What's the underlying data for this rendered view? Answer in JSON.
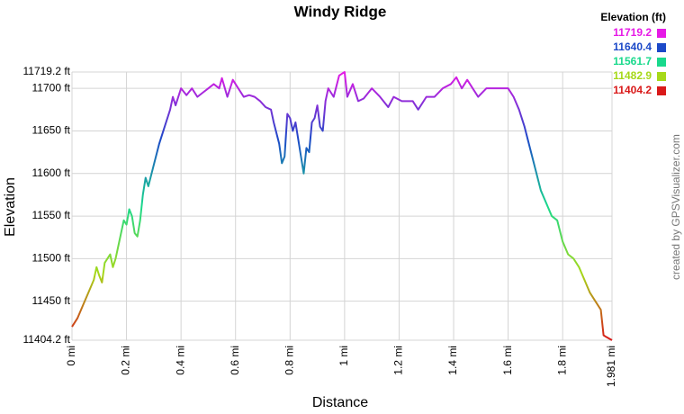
{
  "chart_data": {
    "type": "line",
    "title": "Windy Ridge",
    "x_label": "Distance",
    "y_label": "Elevation",
    "credit": "created by GPSVisualizer.com",
    "legend": {
      "title": "Elevation (ft)",
      "items": [
        {
          "value": 11719.2,
          "color": "#e619e6"
        },
        {
          "value": 11640.4,
          "color": "#1c49c8"
        },
        {
          "value": 11561.7,
          "color": "#19d98c"
        },
        {
          "value": 11482.9,
          "color": "#a6d919"
        },
        {
          "value": 11404.2,
          "color": "#d91919"
        }
      ]
    },
    "x": [
      0,
      0.02,
      0.04,
      0.06,
      0.08,
      0.09,
      0.1,
      0.11,
      0.12,
      0.14,
      0.15,
      0.16,
      0.18,
      0.19,
      0.2,
      0.21,
      0.22,
      0.23,
      0.24,
      0.25,
      0.26,
      0.27,
      0.28,
      0.3,
      0.32,
      0.34,
      0.36,
      0.37,
      0.38,
      0.4,
      0.42,
      0.44,
      0.46,
      0.48,
      0.5,
      0.52,
      0.54,
      0.55,
      0.57,
      0.59,
      0.61,
      0.63,
      0.65,
      0.67,
      0.69,
      0.71,
      0.73,
      0.74,
      0.76,
      0.77,
      0.78,
      0.79,
      0.8,
      0.81,
      0.82,
      0.84,
      0.85,
      0.86,
      0.87,
      0.88,
      0.89,
      0.9,
      0.91,
      0.92,
      0.93,
      0.94,
      0.96,
      0.98,
      1.0,
      1.01,
      1.03,
      1.05,
      1.07,
      1.1,
      1.13,
      1.16,
      1.18,
      1.21,
      1.25,
      1.27,
      1.3,
      1.33,
      1.36,
      1.39,
      1.41,
      1.43,
      1.45,
      1.47,
      1.49,
      1.52,
      1.56,
      1.6,
      1.62,
      1.64,
      1.66,
      1.68,
      1.7,
      1.72,
      1.74,
      1.76,
      1.78,
      1.8,
      1.82,
      1.84,
      1.86,
      1.88,
      1.9,
      1.92,
      1.94,
      1.95,
      1.96,
      1.981
    ],
    "values": [
      11420,
      11430,
      11445,
      11460,
      11475,
      11490,
      11480,
      11472,
      11495,
      11505,
      11490,
      11500,
      11530,
      11545,
      11540,
      11558,
      11550,
      11530,
      11526,
      11545,
      11575,
      11595,
      11585,
      11610,
      11635,
      11655,
      11675,
      11690,
      11680,
      11700,
      11692,
      11700,
      11690,
      11695,
      11700,
      11705,
      11700,
      11712,
      11690,
      11710,
      11700,
      11690,
      11692,
      11690,
      11685,
      11678,
      11675,
      11660,
      11635,
      11612,
      11620,
      11670,
      11665,
      11650,
      11660,
      11620,
      11600,
      11630,
      11625,
      11660,
      11665,
      11680,
      11655,
      11650,
      11685,
      11700,
      11690,
      11715,
      11719.2,
      11690,
      11705,
      11685,
      11688,
      11700,
      11690,
      11678,
      11690,
      11685,
      11685,
      11675,
      11690,
      11690,
      11700,
      11705,
      11713,
      11700,
      11710,
      11700,
      11690,
      11700,
      11700,
      11700,
      11690,
      11675,
      11655,
      11630,
      11605,
      11580,
      11565,
      11550,
      11545,
      11520,
      11505,
      11500,
      11490,
      11475,
      11460,
      11450,
      11440,
      11410,
      11408,
      11404.2
    ],
    "xlim": [
      0,
      1.981
    ],
    "xticks": [
      {
        "value": 0,
        "label": "0 mi"
      },
      {
        "value": 0.2,
        "label": "0.2 mi"
      },
      {
        "value": 0.4,
        "label": "0.4 mi"
      },
      {
        "value": 0.6,
        "label": "0.6 mi"
      },
      {
        "value": 0.8,
        "label": "0.8 mi"
      },
      {
        "value": 1,
        "label": "1 mi"
      },
      {
        "value": 1.2,
        "label": "1.2 mi"
      },
      {
        "value": 1.4,
        "label": "1.4 mi"
      },
      {
        "value": 1.6,
        "label": "1.6 mi"
      },
      {
        "value": 1.8,
        "label": "1.8 mi"
      },
      {
        "value": 1.981,
        "label": "1.981 mi"
      }
    ],
    "ylim": [
      11404.2,
      11719.2
    ],
    "yticks": [
      {
        "value": 11404.2,
        "label": "11404.2 ft"
      },
      {
        "value": 11450,
        "label": "11450 ft"
      },
      {
        "value": 11500,
        "label": "11500 ft"
      },
      {
        "value": 11550,
        "label": "11550 ft"
      },
      {
        "value": 11600,
        "label": "11600 ft"
      },
      {
        "value": 11650,
        "label": "11650 ft"
      },
      {
        "value": 11700,
        "label": "11700 ft"
      },
      {
        "value": 11719.2,
        "label": "11719.2 ft"
      }
    ],
    "grid": true
  }
}
